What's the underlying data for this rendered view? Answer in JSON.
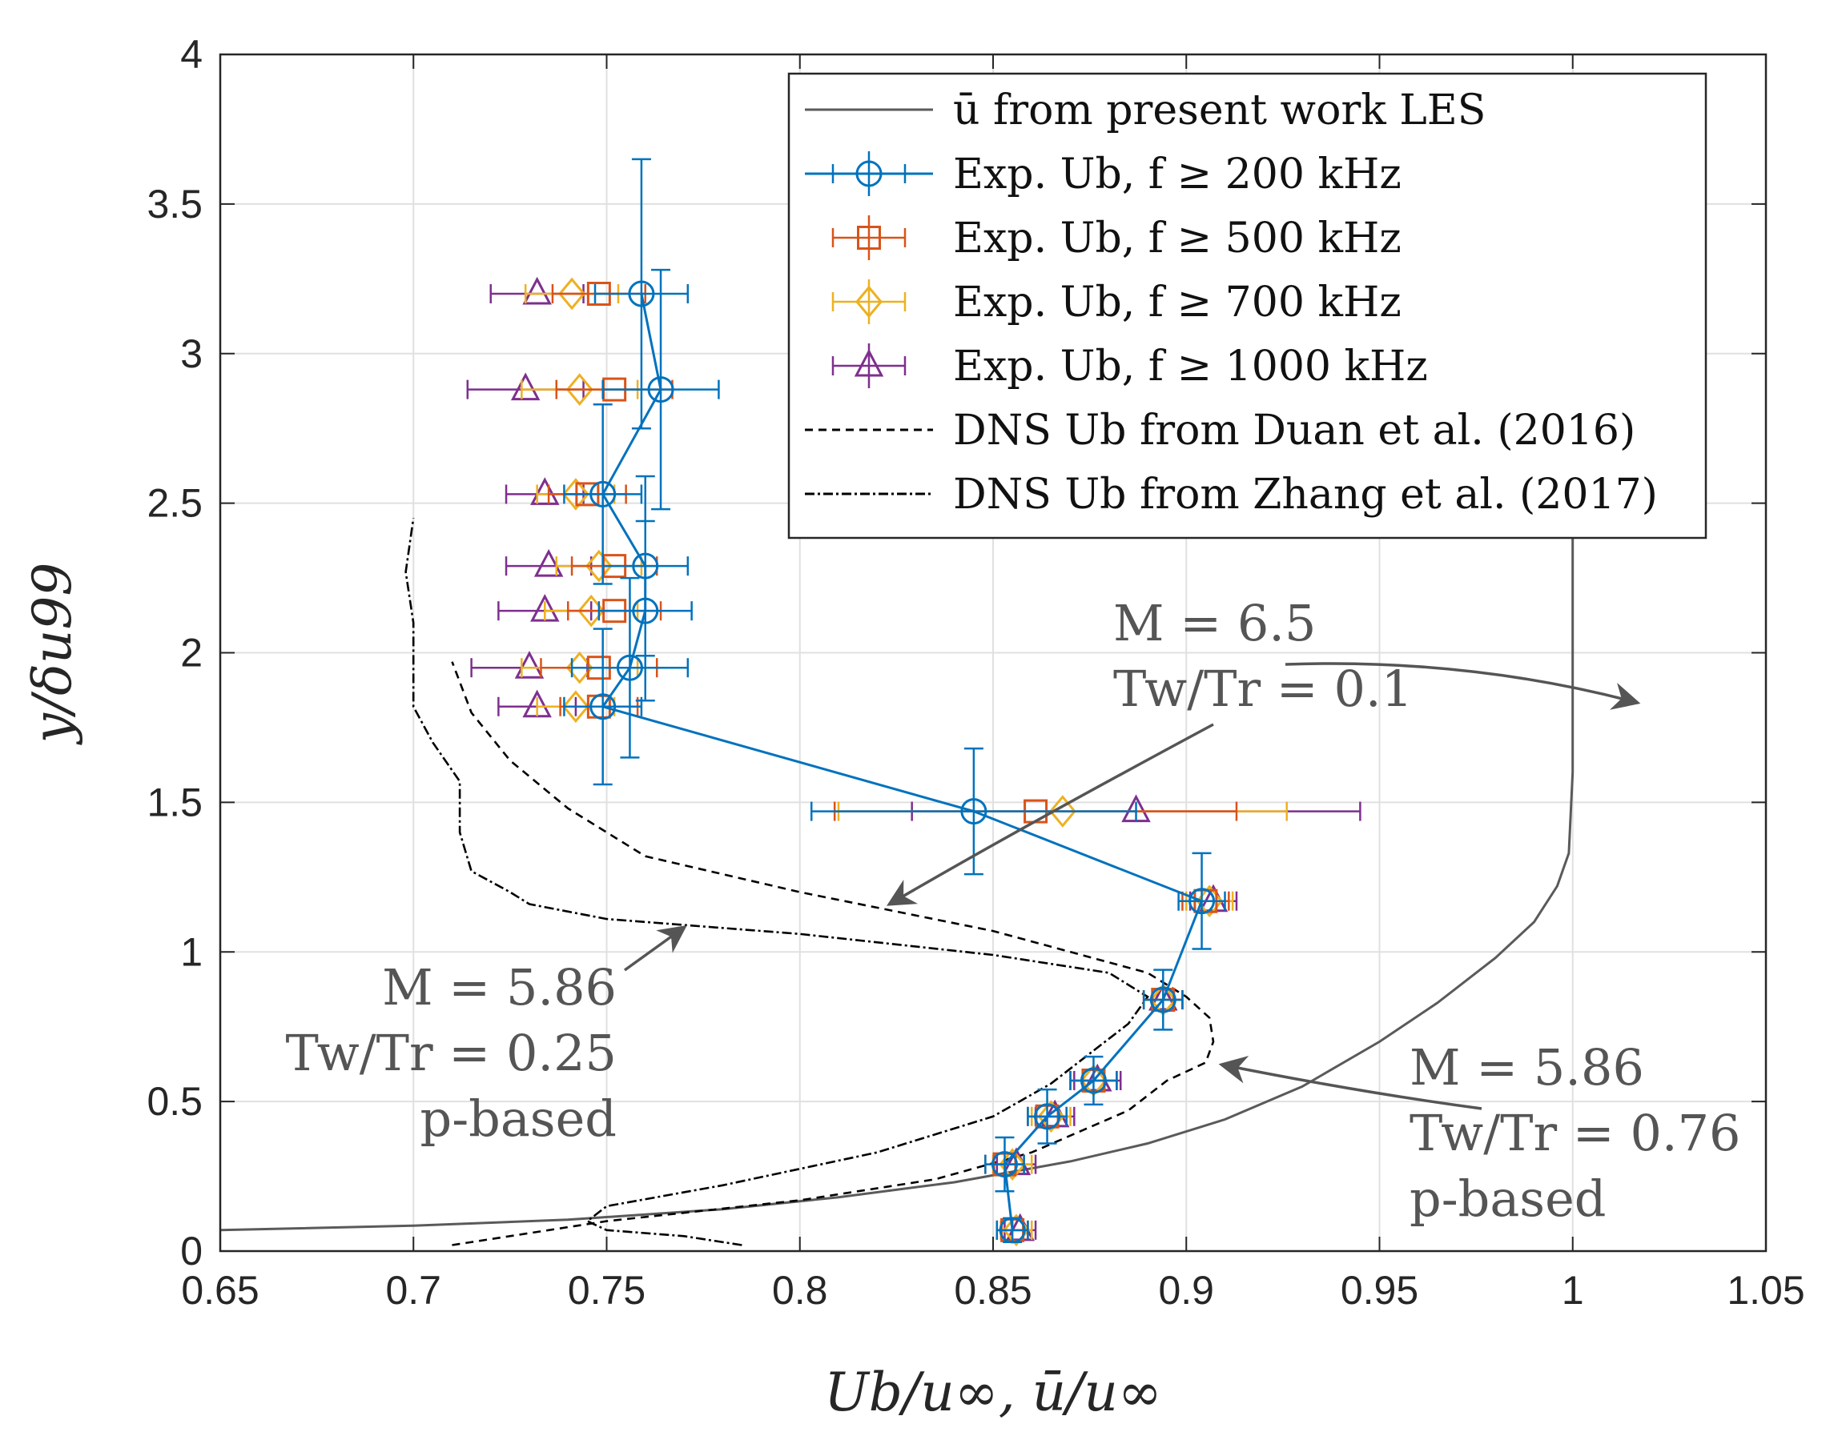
{
  "chart_data": {
    "type": "line",
    "xlabel": "Ub/u∞, ū/u∞",
    "ylabel": "y/δu99",
    "xlim": [
      0.65,
      1.05
    ],
    "ylim": [
      0,
      4
    ],
    "xticks": [
      "0.65",
      "0.7",
      "0.75",
      "0.8",
      "0.85",
      "0.9",
      "0.95",
      "1",
      "1.05"
    ],
    "yticks": [
      "0",
      "0.5",
      "1",
      "1.5",
      "2",
      "2.5",
      "3",
      "3.5",
      "4"
    ],
    "grid": true,
    "legend_position": "top-right",
    "legend": [
      "ū from present work LES",
      "Exp. Ub, f ≥ 200 kHz",
      "Exp. Ub, f ≥ 500 kHz",
      "Exp. Ub, f ≥ 700 kHz",
      "Exp. Ub, f ≥ 1000 kHz",
      "DNS Ub from Duan et al. (2016)",
      "DNS Ub from Zhang et al. (2017)"
    ],
    "colors": {
      "les": "#5a5a5a",
      "f200": "#0072bd",
      "f500": "#d95319",
      "f700": "#edb120",
      "f1000": "#7e2f8e",
      "dns": "#000000"
    },
    "series": [
      {
        "name": "ū from present work LES",
        "x": [
          0.65,
          0.7,
          0.74,
          0.78,
          0.81,
          0.84,
          0.87,
          0.89,
          0.91,
          0.93,
          0.95,
          0.965,
          0.98,
          0.99,
          0.996,
          0.999,
          1.0,
          1.0
        ],
        "y": [
          0.07,
          0.085,
          0.105,
          0.14,
          0.18,
          0.23,
          0.3,
          0.36,
          0.44,
          0.55,
          0.7,
          0.83,
          0.98,
          1.1,
          1.22,
          1.33,
          1.6,
          2.4
        ]
      },
      {
        "name": "Exp. Ub, f ≥ 200 kHz",
        "y": [
          0.07,
          0.29,
          0.45,
          0.57,
          0.84,
          1.17,
          1.47,
          1.82,
          1.95,
          2.14,
          2.29,
          2.53,
          2.88,
          3.2
        ],
        "x": [
          0.855,
          0.853,
          0.864,
          0.876,
          0.894,
          0.904,
          0.845,
          0.749,
          0.756,
          0.76,
          0.76,
          0.749,
          0.764,
          0.759
        ],
        "xerr": [
          0.004,
          0.005,
          0.005,
          0.006,
          0.005,
          0.006,
          0.042,
          0.01,
          0.015,
          0.012,
          0.011,
          0.01,
          0.015,
          0.012
        ],
        "yerr": [
          0.04,
          0.09,
          0.09,
          0.08,
          0.1,
          0.16,
          0.21,
          0.26,
          0.3,
          0.3,
          0.3,
          0.3,
          0.4,
          0.45
        ]
      },
      {
        "name": "Exp. Ub, f ≥ 500 kHz",
        "y": [
          0.07,
          0.29,
          0.45,
          0.57,
          0.84,
          1.17,
          1.47,
          1.82,
          1.95,
          2.14,
          2.29,
          2.53,
          2.88,
          3.2
        ],
        "x": [
          0.855,
          0.853,
          0.864,
          0.876,
          0.894,
          0.905,
          0.861,
          0.748,
          0.748,
          0.752,
          0.752,
          0.745,
          0.752,
          0.748
        ],
        "xerr": [
          0.004,
          0.005,
          0.005,
          0.006,
          0.005,
          0.006,
          0.052,
          0.01,
          0.015,
          0.012,
          0.011,
          0.01,
          0.015,
          0.012
        ]
      },
      {
        "name": "Exp. Ub, f ≥ 700 kHz",
        "y": [
          0.07,
          0.29,
          0.45,
          0.57,
          0.84,
          1.17,
          1.47,
          1.82,
          1.95,
          2.14,
          2.29,
          2.53,
          2.88,
          3.2
        ],
        "x": [
          0.856,
          0.855,
          0.865,
          0.876,
          0.894,
          0.906,
          0.868,
          0.742,
          0.743,
          0.746,
          0.748,
          0.742,
          0.743,
          0.741
        ],
        "xerr": [
          0.004,
          0.005,
          0.005,
          0.006,
          0.005,
          0.006,
          0.058,
          0.01,
          0.015,
          0.012,
          0.011,
          0.01,
          0.015,
          0.012
        ]
      },
      {
        "name": "Exp. Ub, f ≥ 1000 kHz",
        "y": [
          0.07,
          0.29,
          0.45,
          0.57,
          0.84,
          1.17,
          1.47,
          1.82,
          1.95,
          2.14,
          2.29,
          2.53,
          2.88,
          3.2
        ],
        "x": [
          0.857,
          0.856,
          0.866,
          0.877,
          0.894,
          0.907,
          0.887,
          0.732,
          0.73,
          0.734,
          0.735,
          0.734,
          0.729,
          0.732
        ],
        "xerr": [
          0.004,
          0.005,
          0.005,
          0.006,
          0.005,
          0.006,
          0.058,
          0.01,
          0.015,
          0.012,
          0.011,
          0.01,
          0.015,
          0.012
        ]
      },
      {
        "name": "DNS Ub from Duan et al. (2016)",
        "x": [
          0.71,
          0.75,
          0.8,
          0.835,
          0.86,
          0.885,
          0.895,
          0.905,
          0.907,
          0.906,
          0.9,
          0.89,
          0.85,
          0.8,
          0.76,
          0.74,
          0.725,
          0.715,
          0.71
        ],
        "y": [
          0.02,
          0.1,
          0.17,
          0.24,
          0.33,
          0.47,
          0.57,
          0.63,
          0.7,
          0.78,
          0.85,
          0.93,
          1.07,
          1.2,
          1.32,
          1.48,
          1.64,
          1.8,
          1.97
        ]
      },
      {
        "name": "DNS Ub from Zhang et al. (2017)",
        "x": [
          0.785,
          0.77,
          0.75,
          0.745,
          0.75,
          0.78,
          0.82,
          0.85,
          0.865,
          0.875,
          0.885,
          0.89,
          0.88,
          0.85,
          0.8,
          0.75,
          0.73,
          0.725,
          0.715,
          0.712,
          0.712,
          0.705,
          0.7,
          0.7,
          0.698,
          0.7
        ],
        "y": [
          0.02,
          0.05,
          0.07,
          0.1,
          0.15,
          0.22,
          0.33,
          0.45,
          0.56,
          0.66,
          0.76,
          0.85,
          0.93,
          0.99,
          1.06,
          1.11,
          1.16,
          1.2,
          1.27,
          1.4,
          1.57,
          1.7,
          1.82,
          2.1,
          2.27,
          2.45
        ]
      }
    ],
    "annotations": [
      {
        "lines": [
          "M = 6.5",
          "Tw/Tr = 0.1"
        ]
      },
      {
        "lines": [
          "M = 5.86",
          "Tw/Tr = 0.25",
          "p-based"
        ]
      },
      {
        "lines": [
          "M = 5.86",
          "Tw/Tr = 0.76",
          "p-based"
        ]
      }
    ]
  }
}
